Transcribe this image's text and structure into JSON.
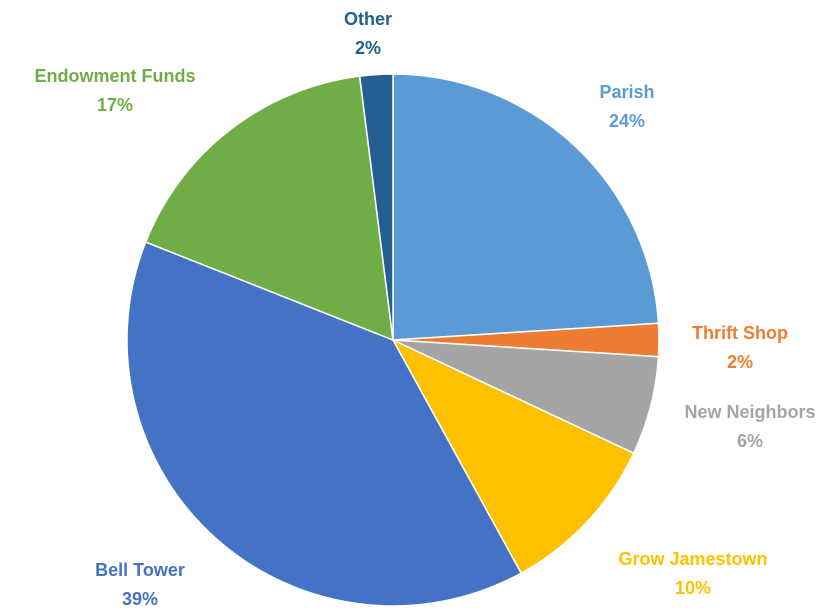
{
  "chart_data": {
    "type": "pie",
    "categories": [
      "Parish",
      "Thrift Shop",
      "New Neighbors",
      "Grow Jamestown",
      "Bell Tower",
      "Endowment Funds",
      "Other"
    ],
    "values": [
      24,
      2,
      6,
      10,
      39,
      17,
      2
    ],
    "value_labels": [
      "24%",
      "2%",
      "6%",
      "10%",
      "39%",
      "17%",
      "2%"
    ],
    "colors": [
      "#5b9bd5",
      "#ed7d31",
      "#a5a5a5",
      "#ffc000",
      "#4472c4",
      "#70ad47",
      "#255e91"
    ]
  }
}
